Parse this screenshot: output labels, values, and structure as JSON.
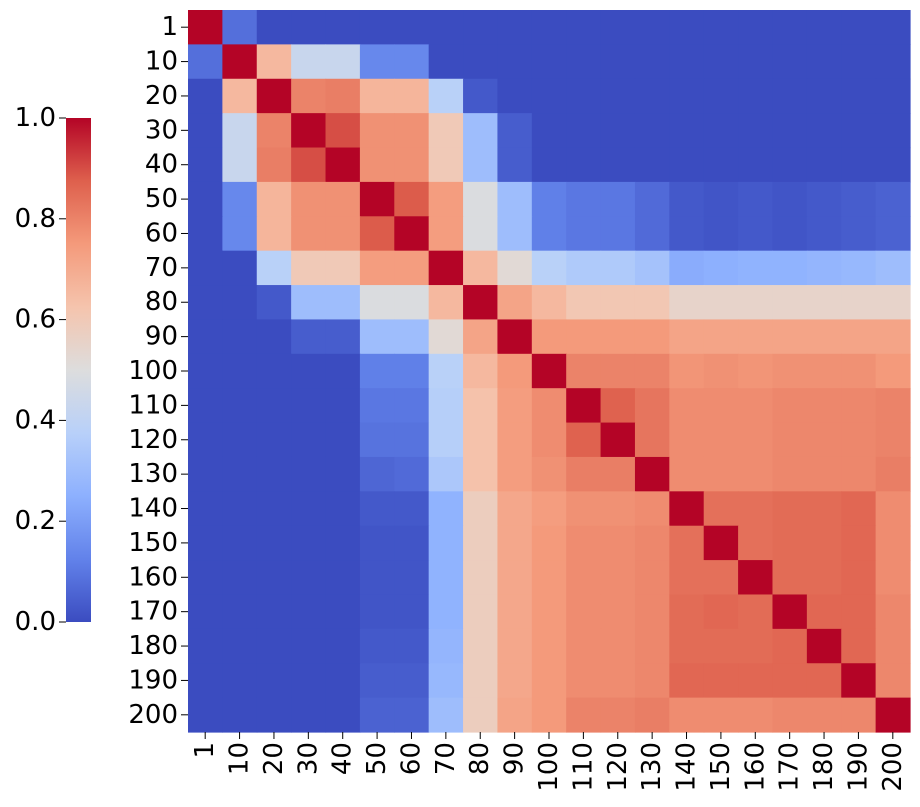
{
  "chart_data": {
    "type": "heatmap",
    "labels": [
      "1",
      "10",
      "20",
      "30",
      "40",
      "50",
      "60",
      "70",
      "80",
      "90",
      "100",
      "110",
      "120",
      "130",
      "140",
      "150",
      "160",
      "170",
      "180",
      "190",
      "200"
    ],
    "colorbar": {
      "min": 0.0,
      "max": 1.0,
      "ticks": [
        "0.0",
        "0.2",
        "0.4",
        "0.6",
        "0.8",
        "1.0"
      ],
      "colormap": "coolwarm"
    },
    "values": [
      [
        1.0,
        0.08,
        0.0,
        0.0,
        0.0,
        0.0,
        0.0,
        0.0,
        0.0,
        0.0,
        0.0,
        0.0,
        0.0,
        0.0,
        0.0,
        0.0,
        0.0,
        0.0,
        0.0,
        0.0,
        0.0
      ],
      [
        0.08,
        1.0,
        0.66,
        0.43,
        0.43,
        0.14,
        0.14,
        0.0,
        0.0,
        0.0,
        0.0,
        0.0,
        0.0,
        0.0,
        0.0,
        0.0,
        0.0,
        0.0,
        0.0,
        0.0,
        0.0
      ],
      [
        0.0,
        0.66,
        1.0,
        0.8,
        0.81,
        0.67,
        0.67,
        0.38,
        0.03,
        0.0,
        0.0,
        0.0,
        0.0,
        0.0,
        0.0,
        0.0,
        0.0,
        0.0,
        0.0,
        0.0,
        0.0
      ],
      [
        0.0,
        0.43,
        0.8,
        1.0,
        0.9,
        0.77,
        0.77,
        0.6,
        0.3,
        0.04,
        0.0,
        0.0,
        0.0,
        0.0,
        0.0,
        0.0,
        0.0,
        0.0,
        0.0,
        0.0,
        0.0
      ],
      [
        0.0,
        0.43,
        0.81,
        0.9,
        1.0,
        0.77,
        0.77,
        0.6,
        0.3,
        0.04,
        0.0,
        0.0,
        0.0,
        0.0,
        0.0,
        0.0,
        0.0,
        0.0,
        0.0,
        0.0,
        0.0
      ],
      [
        0.0,
        0.14,
        0.67,
        0.77,
        0.77,
        1.0,
        0.88,
        0.74,
        0.49,
        0.3,
        0.12,
        0.1,
        0.1,
        0.07,
        0.03,
        0.02,
        0.03,
        0.02,
        0.03,
        0.04,
        0.05
      ],
      [
        0.0,
        0.14,
        0.67,
        0.77,
        0.77,
        0.88,
        1.0,
        0.74,
        0.49,
        0.3,
        0.12,
        0.1,
        0.1,
        0.07,
        0.03,
        0.02,
        0.03,
        0.02,
        0.03,
        0.04,
        0.05
      ],
      [
        0.0,
        0.0,
        0.38,
        0.6,
        0.6,
        0.74,
        0.74,
        1.0,
        0.66,
        0.52,
        0.38,
        0.35,
        0.35,
        0.32,
        0.24,
        0.25,
        0.26,
        0.26,
        0.27,
        0.28,
        0.3
      ],
      [
        0.0,
        0.0,
        0.03,
        0.3,
        0.3,
        0.49,
        0.49,
        0.66,
        1.0,
        0.72,
        0.66,
        0.61,
        0.61,
        0.61,
        0.55,
        0.55,
        0.55,
        0.55,
        0.55,
        0.55,
        0.55
      ],
      [
        0.0,
        0.0,
        0.0,
        0.04,
        0.04,
        0.3,
        0.3,
        0.52,
        0.72,
        1.0,
        0.75,
        0.75,
        0.75,
        0.75,
        0.72,
        0.72,
        0.72,
        0.72,
        0.72,
        0.72,
        0.72
      ],
      [
        0.0,
        0.0,
        0.0,
        0.0,
        0.0,
        0.12,
        0.12,
        0.38,
        0.66,
        0.75,
        1.0,
        0.8,
        0.8,
        0.8,
        0.76,
        0.77,
        0.76,
        0.77,
        0.77,
        0.77,
        0.75
      ],
      [
        0.0,
        0.0,
        0.0,
        0.0,
        0.0,
        0.1,
        0.1,
        0.37,
        0.63,
        0.74,
        0.78,
        1.0,
        0.87,
        0.83,
        0.78,
        0.78,
        0.78,
        0.79,
        0.79,
        0.79,
        0.8
      ],
      [
        0.0,
        0.0,
        0.0,
        0.0,
        0.0,
        0.09,
        0.09,
        0.37,
        0.63,
        0.74,
        0.78,
        0.87,
        1.0,
        0.83,
        0.78,
        0.78,
        0.78,
        0.79,
        0.79,
        0.79,
        0.8
      ],
      [
        0.0,
        0.0,
        0.0,
        0.0,
        0.0,
        0.06,
        0.07,
        0.34,
        0.63,
        0.74,
        0.77,
        0.81,
        0.81,
        1.0,
        0.78,
        0.78,
        0.78,
        0.79,
        0.79,
        0.79,
        0.81
      ],
      [
        0.0,
        0.0,
        0.0,
        0.0,
        0.0,
        0.03,
        0.03,
        0.26,
        0.58,
        0.71,
        0.74,
        0.77,
        0.77,
        0.78,
        1.0,
        0.84,
        0.84,
        0.85,
        0.85,
        0.86,
        0.78
      ],
      [
        0.0,
        0.0,
        0.0,
        0.0,
        0.0,
        0.02,
        0.02,
        0.26,
        0.58,
        0.71,
        0.75,
        0.78,
        0.78,
        0.79,
        0.84,
        1.0,
        0.84,
        0.85,
        0.85,
        0.86,
        0.78
      ],
      [
        0.0,
        0.0,
        0.0,
        0.0,
        0.0,
        0.02,
        0.02,
        0.26,
        0.58,
        0.71,
        0.75,
        0.78,
        0.78,
        0.79,
        0.84,
        0.84,
        1.0,
        0.85,
        0.85,
        0.86,
        0.78
      ],
      [
        0.0,
        0.0,
        0.0,
        0.0,
        0.0,
        0.02,
        0.02,
        0.26,
        0.58,
        0.71,
        0.75,
        0.78,
        0.78,
        0.79,
        0.85,
        0.86,
        0.85,
        1.0,
        0.86,
        0.86,
        0.79
      ],
      [
        0.0,
        0.0,
        0.0,
        0.0,
        0.0,
        0.03,
        0.03,
        0.27,
        0.58,
        0.71,
        0.75,
        0.78,
        0.78,
        0.79,
        0.85,
        0.85,
        0.85,
        0.86,
        1.0,
        0.86,
        0.79
      ],
      [
        0.0,
        0.0,
        0.0,
        0.0,
        0.0,
        0.04,
        0.04,
        0.28,
        0.58,
        0.71,
        0.75,
        0.78,
        0.78,
        0.79,
        0.86,
        0.86,
        0.86,
        0.86,
        0.86,
        1.0,
        0.79
      ],
      [
        0.0,
        0.0,
        0.0,
        0.0,
        0.0,
        0.05,
        0.05,
        0.3,
        0.58,
        0.72,
        0.75,
        0.8,
        0.8,
        0.81,
        0.78,
        0.78,
        0.78,
        0.79,
        0.79,
        0.79,
        1.0
      ]
    ]
  }
}
